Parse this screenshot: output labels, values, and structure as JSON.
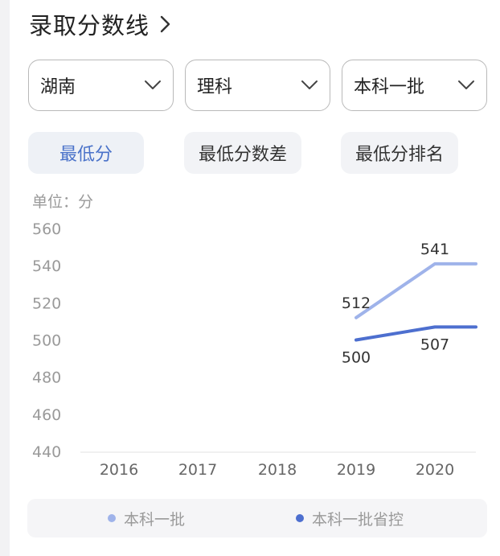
{
  "header": {
    "title": "录取分数线",
    "chevron_icon": "chevron-right-icon"
  },
  "filters": {
    "province": "湖南",
    "subject": "理科",
    "batch": "本科一批",
    "dropdown_icon": "chevron-down-icon"
  },
  "tabs": [
    {
      "label": "最低分",
      "active": true
    },
    {
      "label": "最低分数差",
      "active": false
    },
    {
      "label": "最低分排名",
      "active": false
    }
  ],
  "chart_unit": "单位：分",
  "chart_data": {
    "type": "line",
    "categories": [
      "2016",
      "2017",
      "2018",
      "2019",
      "2020"
    ],
    "ylim": [
      440,
      560
    ],
    "yticks": [
      "440",
      "460",
      "480",
      "500",
      "520",
      "540",
      "560"
    ],
    "series": [
      {
        "name": "本科一批",
        "color": "#9fb3ea",
        "values": [
          null,
          null,
          null,
          512,
          541
        ],
        "labels": [
          "",
          "",
          "",
          "512",
          "541"
        ]
      },
      {
        "name": "本科一批省控",
        "color": "#4d6fcf",
        "values": [
          null,
          null,
          null,
          500,
          507
        ],
        "labels": [
          "",
          "",
          "",
          "500",
          "507"
        ]
      }
    ],
    "grid": false,
    "legend_position": "bottom"
  },
  "colors": {
    "accent": "#4a72c9",
    "series_light": "#9fb3ea",
    "series_dark": "#4d6fcf"
  }
}
